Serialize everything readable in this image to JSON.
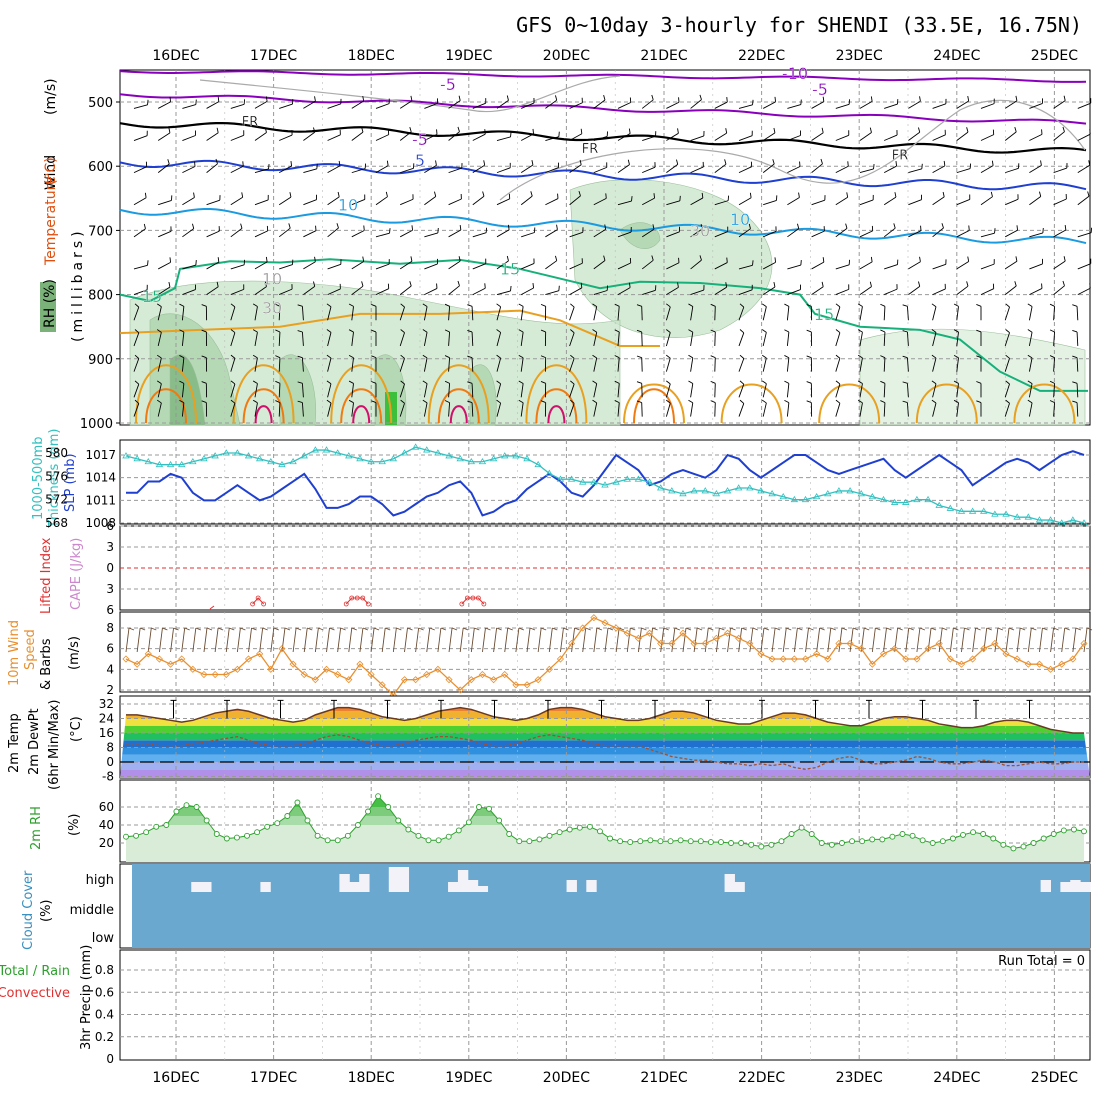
{
  "title": "GFS 0~10day 3-hourly for SHENDI (33.5E, 16.75N)",
  "colors": {
    "wind_barb": "#000000",
    "temp_neg": "#8800bb",
    "temp_fr": "#000000",
    "temp_5": "#1f3fd0",
    "temp_10": "#1a9ae0",
    "temp_15": "#18b07a",
    "temp_20": "#e8a020",
    "temp_25": "#f07a10",
    "temp_30": "#d0106a",
    "rh": "#c8e4c8",
    "slp": "#1f3fd0",
    "thickness": "#33c0c0",
    "lifted": "#e03030",
    "wind10": "#e89030",
    "dewpt": "#a05030",
    "rh2m": "#2ea02e",
    "cloud_bg": "#6aa8d0",
    "cloud_bar": "#f2f2f8"
  },
  "chart_data": [
    {
      "type": "contour",
      "name": "upper_air",
      "xlabels": [
        "16DEC",
        "17DEC",
        "18DEC",
        "19DEC",
        "20DEC",
        "21DEC",
        "22DEC",
        "23DEC",
        "24DEC",
        "25DEC"
      ],
      "ylabel_parts": [
        "Wind",
        "(m/s)",
        "Temperature",
        "(°C)",
        "RH (%)",
        "(millibars)"
      ],
      "yticks": [
        500,
        600,
        700,
        800,
        900,
        1000
      ],
      "contour_labels": [
        "-10",
        "-5",
        "-5",
        "FR",
        "FR",
        "FR",
        "-5",
        "5",
        "10",
        "10",
        "15",
        "15",
        "15",
        "10",
        "30",
        "30"
      ],
      "legend_boxes": [
        "#7ab27a",
        "#a9d3a9",
        "#c8e4c8"
      ]
    },
    {
      "type": "line",
      "name": "slp_thickness",
      "ylabel_left_parts": [
        "1000-500mb",
        "Thickness (dm)"
      ],
      "ylabel_right": "SLP (mb)",
      "yticks_left": [
        568,
        572,
        576,
        580
      ],
      "yticks_right": [
        1008,
        1011,
        1014,
        1017
      ],
      "series": [
        {
          "name": "SLP",
          "values": [
            1012,
            1012,
            1013.5,
            1013.5,
            1014.5,
            1014,
            1012,
            1011,
            1011,
            1012,
            1013,
            1012,
            1011,
            1011.5,
            1012.5,
            1013.5,
            1014.5,
            1012.5,
            1010,
            1010,
            1010.5,
            1011.5,
            1011.5,
            1010.5,
            1009,
            1009.5,
            1010.5,
            1011.5,
            1012,
            1013,
            1013.5,
            1012,
            1009,
            1009.5,
            1010.5,
            1011,
            1012.5,
            1013.5,
            1014.5,
            1013.5,
            1012,
            1011.5,
            1013,
            1015,
            1017,
            1016,
            1015,
            1013,
            1013.5,
            1014.5,
            1015,
            1014.5,
            1014,
            1015,
            1017,
            1016.5,
            1015,
            1014,
            1015,
            1016,
            1017,
            1017,
            1016,
            1015,
            1014.5,
            1015,
            1015.5,
            1016,
            1016.5,
            1015,
            1014,
            1015,
            1016,
            1017,
            1016,
            1015,
            1013,
            1014,
            1015,
            1016,
            1016.5,
            1016,
            1015,
            1016,
            1017,
            1017.5,
            1017
          ]
        },
        {
          "name": "Thickness",
          "values": [
            579.5,
            579,
            578.5,
            578,
            578,
            578,
            578.5,
            579,
            579.5,
            580,
            580,
            579.5,
            579,
            578.5,
            578,
            578.5,
            579.5,
            580.5,
            580.5,
            580,
            579.5,
            579,
            578.5,
            578.5,
            579,
            580,
            581,
            580.5,
            580,
            579.5,
            579,
            578.5,
            578.5,
            579,
            579.5,
            579.5,
            579,
            578,
            576.5,
            575.5,
            575.5,
            575,
            575,
            574.5,
            575,
            575.5,
            575.5,
            575,
            574,
            573.5,
            573,
            573.5,
            573.5,
            573,
            573.5,
            574,
            574,
            573.5,
            573,
            572.5,
            572,
            572,
            572.5,
            573,
            573.5,
            573.5,
            573,
            572.5,
            572,
            571.5,
            571.5,
            572,
            572,
            571,
            570.5,
            570,
            570,
            570,
            569.5,
            569.5,
            569,
            569,
            568.5,
            568.5,
            568,
            568.5,
            568
          ]
        }
      ]
    },
    {
      "type": "line",
      "name": "cape_lifted_index",
      "ylabel_parts": [
        "Lifted Index",
        "CAPE (J/kg)"
      ],
      "yticks": [
        -3,
        0,
        3,
        6
      ],
      "ylim": [
        -6,
        6
      ],
      "series": [
        {
          "name": "CAPE",
          "segments": [
            {
              "x": [
                11.5,
                12,
                12.5
              ],
              "y": [
                2,
                4,
                2
              ]
            },
            {
              "x": [
                20,
                20.5,
                21,
                21.5,
                22
              ],
              "y": [
                2,
                4,
                4,
                4,
                2
              ]
            },
            {
              "x": [
                30.5,
                31,
                31.5,
                32,
                32.5
              ],
              "y": [
                2,
                4,
                4,
                4,
                2
              ]
            }
          ]
        }
      ]
    },
    {
      "type": "line",
      "name": "wind_10m",
      "ylabel_parts": [
        "10m Wind",
        "Speed",
        "& Barbs",
        "(m/s)"
      ],
      "yticks": [
        2,
        4,
        6,
        8
      ],
      "series": [
        {
          "name": "10m Wind Speed",
          "values": [
            5,
            4.5,
            5.5,
            5,
            4.5,
            5,
            4,
            3.5,
            3.5,
            3.5,
            4,
            5,
            5.5,
            4,
            6,
            4.5,
            3.5,
            3,
            4,
            3.5,
            3,
            4.5,
            3.5,
            2.5,
            1.5,
            3,
            3,
            3.5,
            4,
            3,
            2,
            3,
            3.5,
            3,
            3.5,
            2.5,
            2.5,
            3,
            4,
            5,
            6.5,
            8,
            9,
            8.5,
            8,
            7.5,
            7,
            7.5,
            6.5,
            6.5,
            7.5,
            6.5,
            6.5,
            7,
            7.5,
            7,
            6.5,
            5.5,
            5,
            5,
            5,
            5,
            5.5,
            5,
            6.5,
            6.5,
            6,
            4.5,
            5.5,
            6,
            5,
            5,
            6,
            6.5,
            5,
            4.5,
            5,
            6,
            6.5,
            5.5,
            5,
            4.5,
            4.5,
            4,
            4.5,
            5,
            6.5
          ]
        }
      ]
    },
    {
      "type": "area",
      "name": "temp_2m",
      "ylabel_parts": [
        "2m Temp",
        "2m DewPt",
        "(6hr Min/Max)",
        "(°C)"
      ],
      "yticks": [
        -8,
        0,
        8,
        16,
        24,
        32
      ],
      "series": [
        {
          "name": "2m Temp",
          "values": [
            26,
            26,
            25,
            24,
            23,
            22,
            23,
            25,
            27,
            28,
            29,
            28,
            26,
            24,
            23,
            22,
            23,
            26,
            28,
            30,
            30,
            29,
            27,
            25,
            24,
            23,
            24,
            26,
            28,
            29,
            30,
            29,
            27,
            25,
            24,
            23,
            24,
            26,
            29,
            30,
            30,
            29,
            27,
            25,
            24,
            23,
            23,
            24,
            26,
            28,
            28,
            27,
            25,
            23,
            22,
            21,
            21,
            23,
            25,
            27,
            27,
            26,
            24,
            22,
            21,
            20,
            20,
            22,
            24,
            25,
            25,
            24,
            23,
            21,
            20,
            19,
            19,
            20,
            22,
            23,
            23,
            22,
            20,
            18,
            17,
            16,
            16
          ]
        },
        {
          "name": "2m DewPt",
          "values": [
            10,
            10,
            10,
            9,
            9,
            9,
            10,
            11,
            12,
            13,
            14,
            12,
            10,
            9,
            9,
            9,
            10,
            12,
            14,
            15,
            14,
            12,
            10,
            9,
            9,
            10,
            12,
            13,
            14,
            14,
            13,
            12,
            10,
            9,
            9,
            10,
            12,
            14,
            15,
            14,
            13,
            12,
            10,
            9,
            9,
            9,
            9,
            7,
            5,
            3,
            2,
            1,
            1,
            0,
            -1,
            -1,
            -2,
            -1,
            -2,
            -1,
            -3,
            -4,
            -3,
            0,
            2,
            3,
            1,
            -1,
            -1,
            0,
            1,
            3,
            2,
            0,
            -1,
            -1,
            0,
            1,
            0,
            -2,
            -2,
            -1,
            0,
            -1,
            -1,
            0,
            0
          ]
        }
      ]
    },
    {
      "type": "area",
      "name": "rh_2m",
      "ylabel_parts": [
        "2m RH",
        "(%)"
      ],
      "yticks": [
        20,
        40,
        60
      ],
      "series": [
        {
          "name": "2m RH",
          "values": [
            27,
            28,
            32,
            38,
            40,
            55,
            62,
            60,
            45,
            30,
            25,
            26,
            28,
            32,
            38,
            42,
            50,
            65,
            45,
            28,
            23,
            23,
            28,
            40,
            55,
            72,
            60,
            45,
            35,
            28,
            23,
            23,
            27,
            34,
            43,
            60,
            58,
            45,
            30,
            22,
            22,
            24,
            28,
            32,
            35,
            37,
            38,
            33,
            25,
            22,
            21,
            22,
            23,
            22,
            22,
            23,
            22,
            22,
            21,
            21,
            20,
            20,
            18,
            16,
            18,
            22,
            30,
            37,
            30,
            20,
            18,
            20,
            22,
            22,
            24,
            24,
            27,
            30,
            28,
            23,
            20,
            22,
            25,
            29,
            32,
            30,
            25,
            18,
            14,
            16,
            20,
            25,
            30,
            34,
            35,
            33
          ]
        }
      ]
    },
    {
      "type": "bar",
      "name": "cloud_cover",
      "ylabel_parts": [
        "Cloud Cover",
        "(%)"
      ],
      "levels": [
        "high",
        "middle",
        "low"
      ],
      "series": [
        {
          "name": "high",
          "values": [
            0,
            0,
            0,
            0,
            0,
            0,
            10,
            10,
            0,
            0,
            0,
            0,
            0,
            10,
            0,
            0,
            0,
            0,
            0,
            0,
            0,
            18,
            10,
            18,
            0,
            0,
            25,
            25,
            0,
            0,
            0,
            0,
            10,
            22,
            12,
            6,
            0,
            0,
            0,
            0,
            0,
            0,
            0,
            0,
            12,
            0,
            12,
            0,
            0,
            0,
            0,
            0,
            0,
            0,
            0,
            0,
            0,
            0,
            0,
            0,
            18,
            10,
            0,
            0,
            0,
            0,
            0,
            0,
            0,
            0,
            0,
            0,
            0,
            0,
            0,
            0,
            0,
            0,
            0,
            0,
            0,
            0,
            0,
            0,
            0,
            0,
            0,
            0,
            0,
            0,
            0,
            0,
            12,
            0,
            10,
            12,
            10
          ]
        }
      ]
    },
    {
      "type": "bar",
      "name": "precip_3hr",
      "ylabel_parts": [
        "3hr Precip (mm)",
        "Total / Rain",
        "Convective"
      ],
      "yticks": [
        0,
        0.2,
        0.4,
        0.6,
        0.8
      ],
      "ylim": [
        0,
        1
      ],
      "run_total_label": "Run Total = 0",
      "series": [
        {
          "name": "Total",
          "values": []
        }
      ]
    }
  ]
}
